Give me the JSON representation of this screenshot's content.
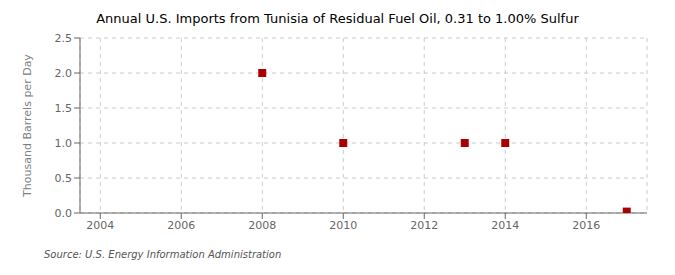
{
  "chart_data": {
    "type": "scatter",
    "title": "Annual U.S. Imports from Tunisia of Residual Fuel Oil, 0.31 to 1.00% Sulfur",
    "ylabel": "Thousand Barrels per Day",
    "annotations": [
      "Source: U.S. Energy Information Administration"
    ],
    "x": [
      2008,
      2010,
      2013,
      2014,
      2017
    ],
    "values": [
      2.0,
      1.0,
      1.0,
      1.0,
      0.02
    ],
    "color": "#aa0000",
    "marker": "square",
    "xlim": [
      2003.5,
      2017.5
    ],
    "ylim": [
      0.0,
      2.5
    ],
    "xticks": [
      2004,
      2006,
      2008,
      2010,
      2012,
      2014,
      2016
    ],
    "yticks": [
      {
        "value": 0.0,
        "label": "0.0"
      },
      0.5,
      {
        "value": 1.0,
        "label": "1.0"
      },
      1.5,
      {
        "value": 2.0,
        "label": "2.0"
      },
      2.5
    ],
    "grid": true
  }
}
